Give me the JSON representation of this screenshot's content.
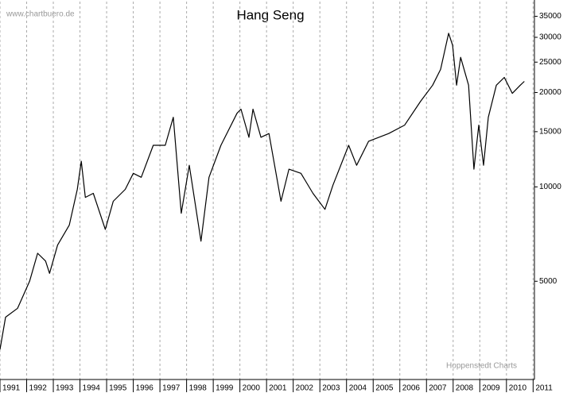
{
  "chart_data": {
    "type": "line",
    "title": "Hang Seng",
    "source": "www.chartbuero.de",
    "credit": "Hoppenstedt Charts",
    "x": [
      1991.0,
      1991.21,
      1991.66,
      1992.11,
      1992.41,
      1992.71,
      1992.86,
      1993.16,
      1993.6,
      1993.9,
      1994.05,
      1994.2,
      1994.5,
      1994.95,
      1995.25,
      1995.7,
      1996.0,
      1996.3,
      1996.75,
      1997.2,
      1997.5,
      1997.8,
      1998.1,
      1998.54,
      1998.84,
      1999.29,
      1999.89,
      2000.04,
      2000.34,
      2000.49,
      2000.79,
      2001.09,
      2001.54,
      2001.84,
      2002.29,
      2002.74,
      2003.19,
      2003.49,
      2004.08,
      2004.38,
      2004.83,
      2005.58,
      2006.18,
      2006.78,
      2007.23,
      2007.53,
      2007.83,
      2007.98,
      2008.13,
      2008.28,
      2008.58,
      2008.78,
      2008.96,
      2009.14,
      2009.32,
      2009.62,
      2009.92,
      2010.22,
      2010.52,
      2010.67
    ],
    "values": [
      3030,
      3840,
      4100,
      5000,
      6140,
      5800,
      5300,
      6520,
      7550,
      9820,
      12070,
      9260,
      9540,
      7320,
      9000,
      9820,
      11050,
      10730,
      13570,
      13570,
      16680,
      8240,
      11720,
      6710,
      10730,
      13570,
      17170,
      17700,
      14400,
      17700,
      14400,
      14800,
      9000,
      11390,
      11050,
      9540,
      8480,
      10120,
      13570,
      11720,
      13980,
      14800,
      15740,
      18760,
      21100,
      23700,
      30900,
      28300,
      21100,
      25900,
      21100,
      11390,
      15740,
      11720,
      16680,
      21100,
      22350,
      19870,
      21100,
      21700
    ],
    "color": "#000000",
    "xlim": [
      1991,
      2011.05
    ],
    "xticks": [
      1991,
      1992,
      1993,
      1994,
      1995,
      1996,
      1997,
      1998,
      1999,
      2000,
      2001,
      2002,
      2003,
      2004,
      2005,
      2006,
      2007,
      2008,
      2009,
      2010,
      2011
    ],
    "ylim": [
      2430,
      39000
    ],
    "log_scale": true,
    "yticks": [
      5000,
      10000,
      15000,
      20000,
      25000,
      30000,
      35000
    ],
    "grid": true
  }
}
